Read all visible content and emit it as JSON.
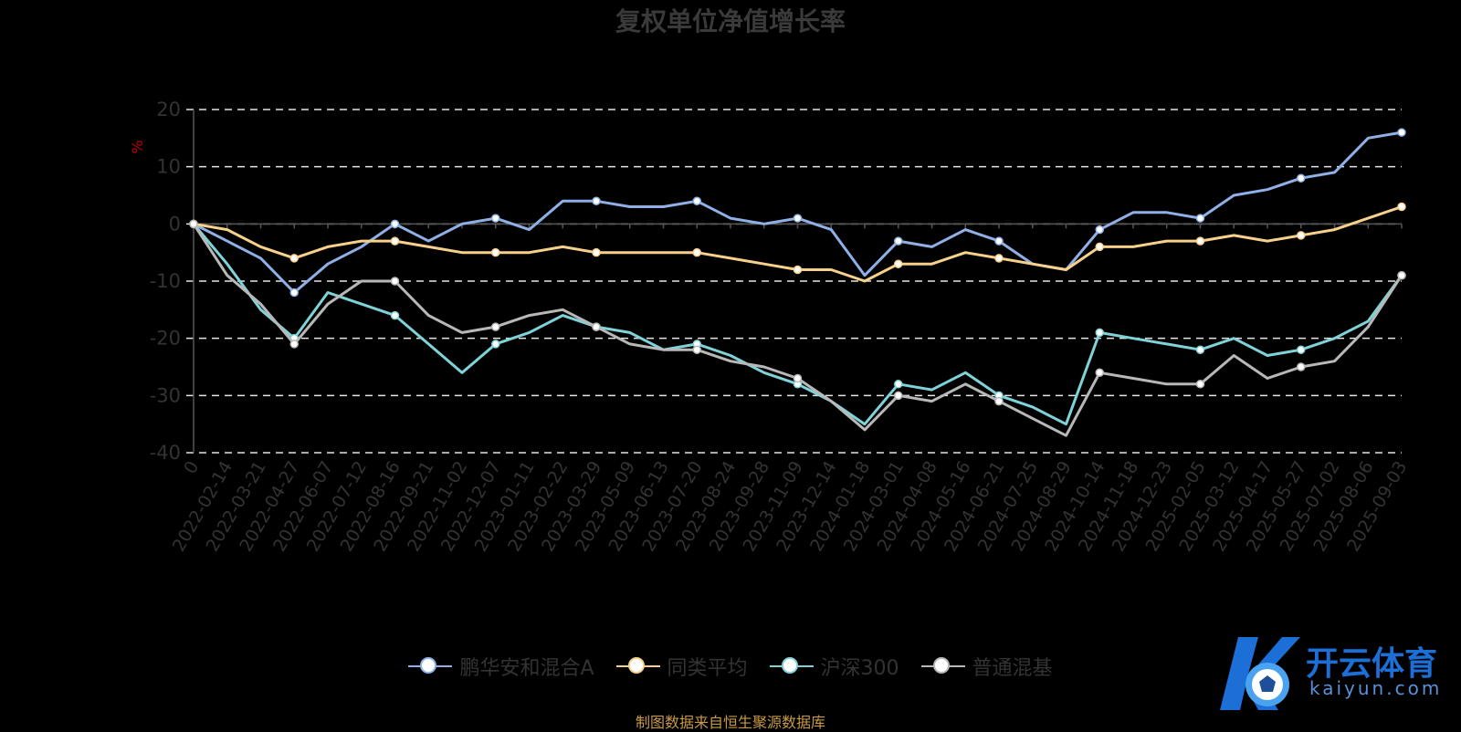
{
  "chart_data": {
    "type": "line",
    "title": "复权单位净值增长率",
    "ylabel": "%",
    "xlabel": "",
    "ylim": [
      -40,
      20
    ],
    "yticks": [
      20,
      10,
      0,
      -10,
      -20,
      -30,
      -40
    ],
    "grid": true,
    "legend_position": "bottom",
    "categories": [
      "0",
      "2022-02-14",
      "2022-03-21",
      "2022-04-27",
      "2022-06-07",
      "2022-07-12",
      "2022-08-16",
      "2022-09-21",
      "2022-11-02",
      "2022-12-07",
      "2023-01-11",
      "2023-02-22",
      "2023-03-29",
      "2023-05-09",
      "2023-06-13",
      "2023-07-20",
      "2023-08-24",
      "2023-09-28",
      "2023-11-09",
      "2023-12-14",
      "2024-01-18",
      "2024-03-01",
      "2024-04-08",
      "2024-05-16",
      "2024-06-21",
      "2024-07-25",
      "2024-08-29",
      "2024-10-14",
      "2024-11-18",
      "2024-12-23",
      "2025-02-05",
      "2025-03-12",
      "2025-04-17",
      "2025-05-27",
      "2025-07-02",
      "2025-08-06",
      "2025-09-03"
    ],
    "series": [
      {
        "name": "鹏华安和混合A",
        "color": "#8fb0e6",
        "values": [
          0,
          -3,
          -6,
          -12,
          -7,
          -4,
          0,
          -3,
          0,
          1,
          -1,
          4,
          4,
          3,
          3,
          4,
          1,
          0,
          1,
          -1,
          -9,
          -3,
          -4,
          -1,
          -3,
          -7,
          -8,
          -1,
          2,
          2,
          1,
          5,
          6,
          8,
          9,
          15,
          16
        ]
      },
      {
        "name": "同类平均",
        "color": "#f7d08a",
        "values": [
          0,
          -1,
          -4,
          -6,
          -4,
          -3,
          -3,
          -4,
          -5,
          -5,
          -5,
          -4,
          -5,
          -5,
          -5,
          -5,
          -6,
          -7,
          -8,
          -8,
          -10,
          -7,
          -7,
          -5,
          -6,
          -7,
          -8,
          -4,
          -4,
          -3,
          -3,
          -2,
          -3,
          -2,
          -1,
          1,
          3
        ]
      },
      {
        "name": "沪深300",
        "color": "#7fd3d8",
        "values": [
          0,
          -7,
          -15,
          -20,
          -12,
          -14,
          -16,
          -21,
          -26,
          -21,
          -19,
          -16,
          -18,
          -19,
          -22,
          -21,
          -23,
          -26,
          -28,
          -31,
          -35,
          -28,
          -29,
          -26,
          -30,
          -32,
          -35,
          -19,
          -20,
          -21,
          -22,
          -20,
          -23,
          -22,
          -20,
          -17,
          -9
        ]
      },
      {
        "name": "普通混基",
        "color": "#b8b8b8",
        "values": [
          0,
          -9,
          -14,
          -21,
          -14,
          -10,
          -10,
          -16,
          -19,
          -18,
          -16,
          -15,
          -18,
          -21,
          -22,
          -22,
          -24,
          -25,
          -27,
          -31,
          -36,
          -30,
          -31,
          -28,
          -31,
          -34,
          -37,
          -26,
          -27,
          -28,
          -28,
          -23,
          -27,
          -25,
          -24,
          -18,
          -9
        ]
      }
    ]
  },
  "source_note": "制图数据来自恒生聚源数据库",
  "watermark": {
    "brand": "开云体育",
    "domain": "kaiyun.com"
  }
}
